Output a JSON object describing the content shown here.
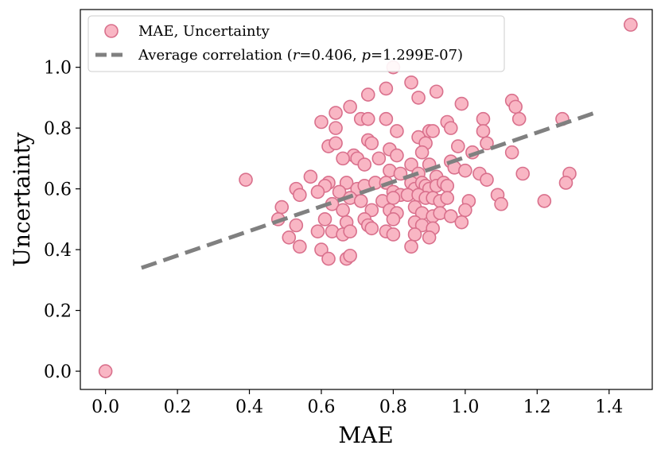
{
  "chart_data": {
    "type": "scatter",
    "title": "",
    "xlabel": "MAE",
    "ylabel": "Uncertainty",
    "xlim": [
      -0.07,
      1.52
    ],
    "ylim": [
      -0.06,
      1.19
    ],
    "xticks": [
      0.0,
      0.2,
      0.4,
      0.6,
      0.8,
      1.0,
      1.2,
      1.4
    ],
    "xtick_labels": [
      "0.0",
      "0.2",
      "0.4",
      "0.6",
      "0.8",
      "1.0",
      "1.2",
      "1.4"
    ],
    "yticks": [
      0.0,
      0.2,
      0.4,
      0.6,
      0.8,
      1.0
    ],
    "ytick_labels": [
      "0.0",
      "0.2",
      "0.4",
      "0.6",
      "0.8",
      "1.0"
    ],
    "legend_position": "top-left",
    "colors": {
      "marker_fill": "#f9b6c4",
      "marker_edge": "#d9708c",
      "line": "#808080"
    },
    "series": [
      {
        "name": "MAE, Uncertainty",
        "kind": "scatter",
        "points": [
          [
            0.0,
            0.0
          ],
          [
            1.46,
            1.14
          ],
          [
            0.39,
            0.63
          ],
          [
            0.8,
            1.0
          ],
          [
            0.85,
            0.95
          ],
          [
            0.73,
            0.91
          ],
          [
            0.87,
            0.9
          ],
          [
            0.92,
            0.92
          ],
          [
            0.99,
            0.88
          ],
          [
            1.13,
            0.89
          ],
          [
            1.14,
            0.87
          ],
          [
            1.27,
            0.83
          ],
          [
            1.15,
            0.83
          ],
          [
            0.78,
            0.93
          ],
          [
            0.68,
            0.87
          ],
          [
            0.64,
            0.85
          ],
          [
            0.71,
            0.83
          ],
          [
            0.73,
            0.83
          ],
          [
            0.78,
            0.83
          ],
          [
            0.6,
            0.82
          ],
          [
            0.64,
            0.8
          ],
          [
            0.81,
            0.79
          ],
          [
            0.9,
            0.79
          ],
          [
            0.91,
            0.79
          ],
          [
            0.95,
            0.82
          ],
          [
            1.05,
            0.83
          ],
          [
            1.05,
            0.79
          ],
          [
            0.96,
            0.8
          ],
          [
            0.87,
            0.77
          ],
          [
            0.73,
            0.76
          ],
          [
            0.74,
            0.75
          ],
          [
            0.62,
            0.74
          ],
          [
            0.64,
            0.75
          ],
          [
            0.89,
            0.75
          ],
          [
            0.98,
            0.74
          ],
          [
            1.06,
            0.75
          ],
          [
            1.13,
            0.72
          ],
          [
            1.02,
            0.72
          ],
          [
            0.79,
            0.73
          ],
          [
            0.88,
            0.72
          ],
          [
            0.69,
            0.71
          ],
          [
            0.7,
            0.7
          ],
          [
            0.66,
            0.7
          ],
          [
            0.76,
            0.7
          ],
          [
            0.81,
            0.71
          ],
          [
            0.72,
            0.68
          ],
          [
            0.79,
            0.66
          ],
          [
            0.85,
            0.68
          ],
          [
            0.9,
            0.68
          ],
          [
            0.96,
            0.69
          ],
          [
            0.82,
            0.65
          ],
          [
            0.87,
            0.65
          ],
          [
            0.92,
            0.64
          ],
          [
            0.97,
            0.67
          ],
          [
            1.0,
            0.66
          ],
          [
            1.04,
            0.65
          ],
          [
            1.06,
            0.63
          ],
          [
            1.16,
            0.65
          ],
          [
            0.57,
            0.64
          ],
          [
            0.62,
            0.62
          ],
          [
            0.61,
            0.61
          ],
          [
            0.67,
            0.62
          ],
          [
            0.7,
            0.6
          ],
          [
            0.72,
            0.61
          ],
          [
            0.75,
            0.62
          ],
          [
            0.78,
            0.62
          ],
          [
            0.8,
            0.59
          ],
          [
            0.82,
            0.58
          ],
          [
            0.85,
            0.62
          ],
          [
            0.86,
            0.6
          ],
          [
            0.88,
            0.62
          ],
          [
            0.89,
            0.61
          ],
          [
            0.9,
            0.6
          ],
          [
            0.92,
            0.61
          ],
          [
            0.94,
            0.62
          ],
          [
            0.95,
            0.61
          ],
          [
            0.53,
            0.6
          ],
          [
            0.59,
            0.59
          ],
          [
            0.65,
            0.59
          ],
          [
            0.68,
            0.57
          ],
          [
            0.71,
            0.56
          ],
          [
            0.77,
            0.56
          ],
          [
            0.8,
            0.57
          ],
          [
            0.84,
            0.58
          ],
          [
            0.87,
            0.58
          ],
          [
            0.89,
            0.57
          ],
          [
            0.91,
            0.57
          ],
          [
            0.93,
            0.56
          ],
          [
            0.95,
            0.57
          ],
          [
            1.01,
            0.56
          ],
          [
            1.09,
            0.58
          ],
          [
            1.1,
            0.55
          ],
          [
            1.29,
            0.65
          ],
          [
            1.28,
            0.62
          ],
          [
            1.22,
            0.56
          ],
          [
            0.49,
            0.54
          ],
          [
            0.54,
            0.58
          ],
          [
            0.63,
            0.55
          ],
          [
            0.66,
            0.53
          ],
          [
            0.74,
            0.53
          ],
          [
            0.79,
            0.53
          ],
          [
            0.81,
            0.52
          ],
          [
            0.86,
            0.54
          ],
          [
            0.88,
            0.52
          ],
          [
            0.91,
            0.51
          ],
          [
            0.93,
            0.52
          ],
          [
            0.96,
            0.51
          ],
          [
            1.0,
            0.53
          ],
          [
            0.99,
            0.49
          ],
          [
            0.48,
            0.5
          ],
          [
            0.53,
            0.48
          ],
          [
            0.61,
            0.5
          ],
          [
            0.67,
            0.49
          ],
          [
            0.72,
            0.5
          ],
          [
            0.73,
            0.48
          ],
          [
            0.8,
            0.5
          ],
          [
            0.86,
            0.49
          ],
          [
            0.88,
            0.48
          ],
          [
            0.91,
            0.47
          ],
          [
            0.51,
            0.44
          ],
          [
            0.59,
            0.46
          ],
          [
            0.63,
            0.46
          ],
          [
            0.66,
            0.45
          ],
          [
            0.68,
            0.46
          ],
          [
            0.74,
            0.47
          ],
          [
            0.78,
            0.46
          ],
          [
            0.8,
            0.45
          ],
          [
            0.86,
            0.45
          ],
          [
            0.9,
            0.44
          ],
          [
            0.54,
            0.41
          ],
          [
            0.6,
            0.4
          ],
          [
            0.62,
            0.37
          ],
          [
            0.67,
            0.37
          ],
          [
            0.68,
            0.38
          ],
          [
            0.85,
            0.41
          ]
        ]
      },
      {
        "name": "Average correlation",
        "kind": "dashed-line",
        "from": [
          0.1,
          0.34
        ],
        "to": [
          1.36,
          0.85
        ]
      }
    ],
    "legend": {
      "scatter_label": "MAE, Uncertainty",
      "line_prefix": "Average correlation (",
      "r_symbol": "r",
      "r_text": "=0.406, ",
      "p_symbol": "p",
      "p_text": "=1.299E-07)"
    }
  }
}
